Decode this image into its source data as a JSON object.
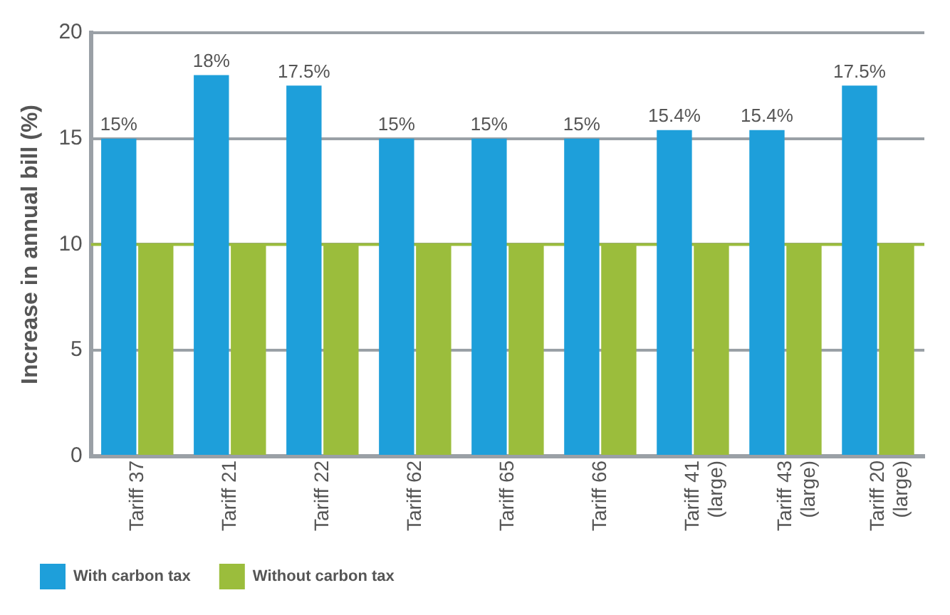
{
  "chart_data": {
    "type": "bar",
    "ylabel": "Increase in annual bill (%)",
    "categories": [
      "Tariff 37",
      "Tariff 21",
      "Tariff 22",
      "Tariff 62",
      "Tariff 65",
      "Tariff 66",
      "Tariff 41 (large)",
      "Tariff 43 (large)",
      "Tariff 20 (large)"
    ],
    "series": [
      {
        "name": "With carbon tax",
        "color": "#1e9fda",
        "values": [
          15,
          18,
          17.5,
          15,
          15,
          15,
          15.4,
          15.4,
          17.5
        ],
        "value_labels": [
          "15%",
          "18%",
          "17.5%",
          "15%",
          "15%",
          "15%",
          "15.4%",
          "15.4%",
          "17.5%"
        ]
      },
      {
        "name": "Without carbon tax",
        "color": "#9bbd3c",
        "values": [
          10,
          10,
          10,
          10,
          10,
          10,
          10,
          10,
          10
        ]
      }
    ],
    "ylim": [
      0,
      20
    ],
    "yticks": [
      0,
      5,
      10,
      15,
      20
    ],
    "grid": "y",
    "legend": "bottom left",
    "ref_lines": [
      {
        "axis": "y",
        "value": 10,
        "color": "#9bbd3c"
      }
    ]
  }
}
